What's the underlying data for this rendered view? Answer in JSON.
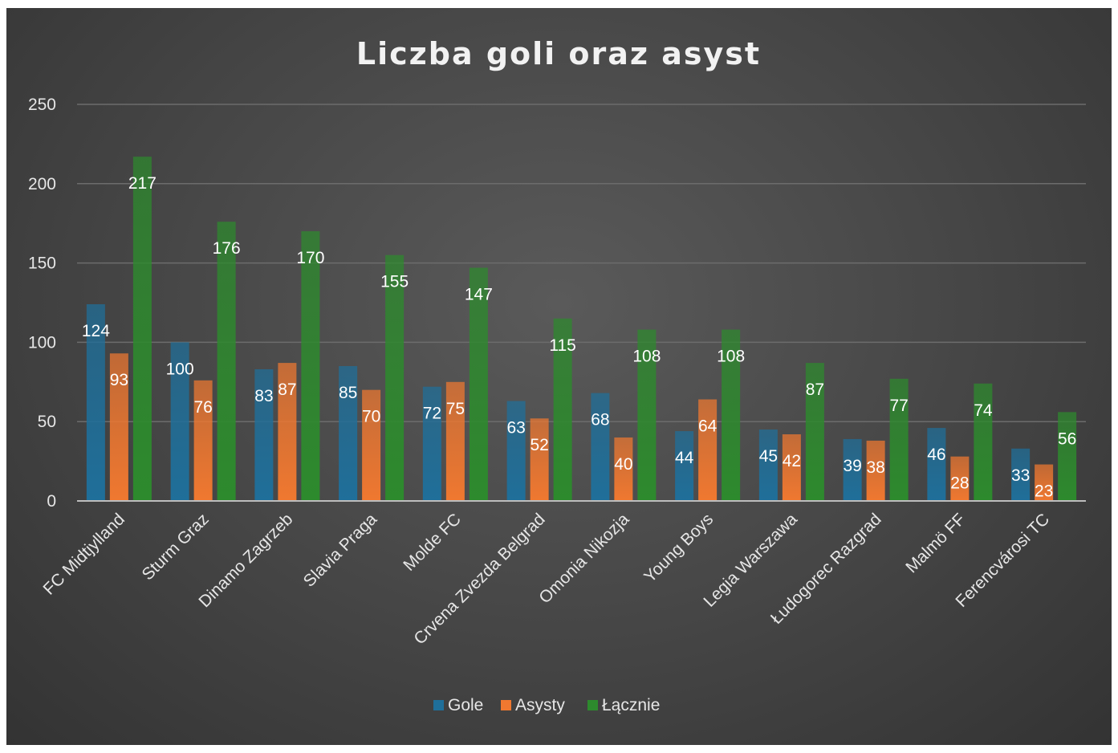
{
  "chart_data": {
    "type": "bar",
    "title": "Liczba goli oraz asyst",
    "categories": [
      "FC Midtjylland",
      "Sturm Graz",
      "Dinamo Zagrzeb",
      "Slavia Praga",
      "Molde FC",
      "Crvena Zvezda Belgrad",
      "Omonia Nikozja",
      "Young Boys",
      "Legia Warszawa",
      "Łudogorec Razgrad",
      "Malmö FF",
      "Ferencvárosi TC"
    ],
    "series": [
      {
        "name": "Gole",
        "values": [
          124,
          100,
          83,
          85,
          72,
          63,
          68,
          44,
          45,
          39,
          46,
          33
        ],
        "color": "#1f6f9a"
      },
      {
        "name": "Asysty",
        "values": [
          93,
          76,
          87,
          70,
          75,
          52,
          40,
          64,
          42,
          38,
          28,
          23
        ],
        "color": "#f07830"
      },
      {
        "name": "Łącznie",
        "values": [
          217,
          176,
          170,
          155,
          147,
          115,
          108,
          108,
          87,
          77,
          74,
          56
        ],
        "color": "#2d8a2d"
      }
    ],
    "ylim": [
      0,
      250
    ],
    "yticks": [
      0,
      50,
      100,
      150,
      200,
      250
    ],
    "grid": true,
    "legend_position": "bottom",
    "data_labels": true
  }
}
